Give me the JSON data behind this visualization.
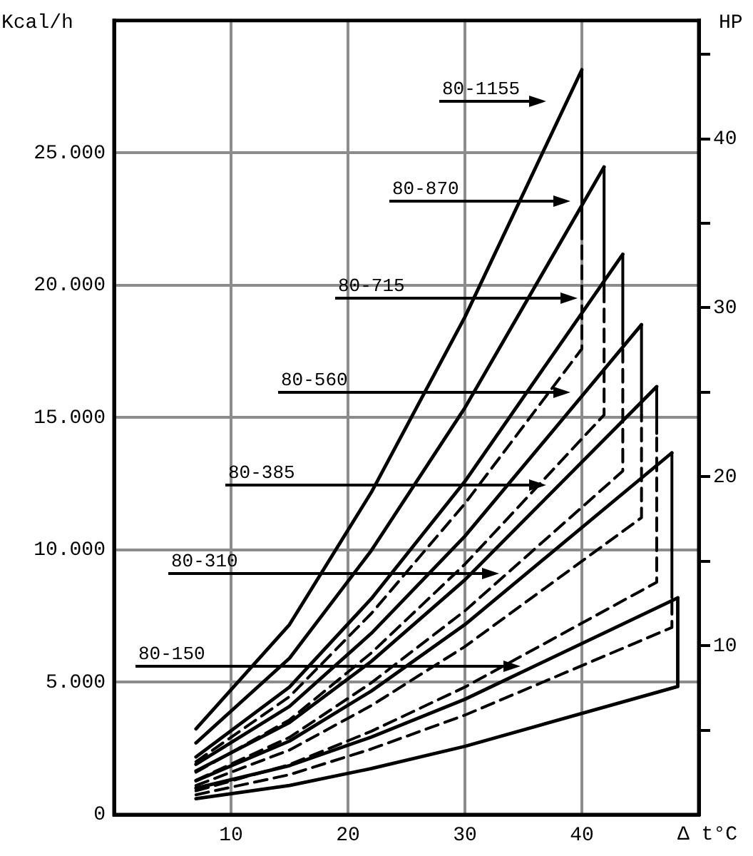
{
  "chart_data": {
    "type": "line",
    "xlabel": "Δ t°C",
    "ylabel": "Kcal/h",
    "y2label": "HP",
    "xlim": [
      0,
      50
    ],
    "xticks": [
      10,
      20,
      30,
      40
    ],
    "ylim": [
      0,
      30000
    ],
    "yticks": [
      {
        "value": 0,
        "label": "0"
      },
      {
        "value": 5000,
        "label": "5.000"
      },
      {
        "value": 10000,
        "label": "10.000"
      },
      {
        "value": 15000,
        "label": "15.000"
      },
      {
        "value": 20000,
        "label": "20.000"
      },
      {
        "value": 25000,
        "label": "25.000"
      }
    ],
    "y2lim": [
      0,
      47
    ],
    "y2ticks": [
      {
        "value": 5,
        "label": null
      },
      10,
      {
        "value": 15,
        "label": null
      },
      20,
      {
        "value": 25,
        "label": null
      },
      30,
      {
        "value": 35,
        "label": null
      },
      40,
      {
        "value": 45,
        "label": null
      }
    ],
    "grid": true,
    "legend": false,
    "marker": "none",
    "series": [
      {
        "color": "#000000",
        "line_style": "solid",
        "x": [
          7,
          15,
          22,
          30,
          40
        ],
        "values": [
          3240,
          7180,
          12180,
          18800,
          28140
        ]
      },
      {
        "color": "#000000",
        "line_style": "solid",
        "x": [
          7,
          15,
          22,
          30,
          41.9
        ],
        "values": [
          2710,
          5910,
          9980,
          15370,
          24470
        ]
      },
      {
        "color": "#000000",
        "line_style": "solid",
        "x": [
          7,
          15,
          22,
          30,
          43.5
        ],
        "values": [
          2180,
          4820,
          8160,
          12590,
          21170
        ]
      },
      {
        "color": "#000000",
        "line_style": "solid",
        "x": [
          7,
          15,
          22,
          30,
          45.1
        ],
        "values": [
          1900,
          4090,
          6850,
          10520,
          18510
        ]
      },
      {
        "color": "#000000",
        "line_style": "solid",
        "x": [
          7,
          15,
          22,
          30,
          46.4
        ],
        "values": [
          1650,
          3480,
          5790,
          8870,
          16170
        ]
      },
      {
        "color": "#000000",
        "line_style": "solid",
        "x": [
          7,
          15,
          22,
          30,
          47.7
        ],
        "values": [
          1280,
          2780,
          4670,
          7180,
          13670
        ]
      },
      {
        "color": "#000000",
        "line_style": "solid",
        "x": [
          7,
          15,
          22,
          30,
          48.2
        ],
        "values": [
          1000,
          1850,
          2930,
          4360,
          8190
        ]
      },
      {
        "color": "#000000",
        "line_style": "dashed",
        "x": [
          7,
          15,
          22,
          30,
          40,
          40,
          40
        ],
        "values": [
          2000,
          4460,
          7600,
          11750,
          17600,
          22230,
          28140
        ]
      },
      {
        "color": "#000000",
        "line_style": "dashed",
        "x": [
          7,
          15,
          22,
          30,
          41.9,
          41.9,
          41.9
        ],
        "values": [
          1600,
          3580,
          6110,
          9460,
          15100,
          19700,
          24470
        ]
      },
      {
        "color": "#000000",
        "line_style": "dashed",
        "x": [
          7,
          15,
          22,
          30,
          43.5,
          43.5,
          43.5
        ],
        "values": [
          1300,
          2920,
          4980,
          7700,
          12980,
          17770,
          21170
        ]
      },
      {
        "color": "#000000",
        "line_style": "dashed",
        "x": [
          7,
          15,
          22,
          30,
          45.1,
          45.1,
          45.1
        ],
        "values": [
          1100,
          2440,
          4120,
          6350,
          11220,
          15100,
          18510
        ]
      },
      {
        "color": "#000000",
        "line_style": "dashed",
        "x": [
          7,
          15,
          22,
          30,
          46.4,
          46.4,
          46.4
        ],
        "values": [
          900,
          1890,
          3150,
          4820,
          8780,
          14400,
          16170
        ]
      },
      {
        "color": "#000000",
        "line_style": "dashed",
        "x": [
          7,
          15,
          22,
          30,
          47.7,
          47.7,
          47.7
        ],
        "values": [
          750,
          1510,
          2480,
          3760,
          7070,
          8190,
          13670
        ]
      },
      {
        "color": "#000000",
        "line_style": "solid",
        "x": [
          7,
          15,
          22,
          30,
          48.2,
          48.2
        ],
        "values": [
          600,
          1100,
          1740,
          2580,
          4840,
          8190
        ]
      }
    ],
    "annotations": [
      "80-1155",
      "80-870",
      "80-715",
      "80-560",
      "80-385",
      "80-310",
      "80-150"
    ]
  }
}
